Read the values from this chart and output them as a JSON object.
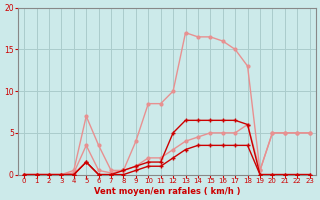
{
  "background_color": "#cceaea",
  "grid_color": "#aacccc",
  "xlabel": "Vent moyen/en rafales ( km/h )",
  "xlim": [
    -0.5,
    23.5
  ],
  "ylim": [
    0,
    20
  ],
  "yticks": [
    0,
    5,
    10,
    15,
    20
  ],
  "xticks": [
    0,
    1,
    2,
    3,
    4,
    5,
    6,
    7,
    8,
    9,
    10,
    11,
    12,
    13,
    14,
    15,
    16,
    17,
    18,
    19,
    20,
    21,
    22,
    23
  ],
  "line_pink_gust_x": [
    0,
    1,
    2,
    3,
    4,
    5,
    6,
    7,
    8,
    9,
    10,
    11,
    12,
    13,
    14,
    15,
    16,
    17,
    18,
    19,
    20,
    21,
    22,
    23
  ],
  "line_pink_gust_y": [
    0,
    0,
    0,
    0,
    0.5,
    7,
    3.5,
    0.5,
    0.5,
    4,
    8.5,
    8.5,
    10,
    17,
    16.5,
    16.5,
    16,
    15,
    13,
    0.5,
    5,
    5,
    5,
    5
  ],
  "line_pink_avg_x": [
    0,
    1,
    2,
    3,
    4,
    5,
    6,
    7,
    8,
    9,
    10,
    11,
    12,
    13,
    14,
    15,
    16,
    17,
    18,
    19,
    20,
    21,
    22,
    23
  ],
  "line_pink_avg_y": [
    0,
    0,
    0,
    0,
    0.2,
    3.5,
    0.5,
    0.2,
    0.5,
    1,
    2,
    2,
    3,
    4,
    4.5,
    5,
    5,
    5,
    6,
    0.5,
    5,
    5,
    5,
    5
  ],
  "line_dark_gust_x": [
    0,
    1,
    2,
    3,
    4,
    5,
    6,
    7,
    8,
    9,
    10,
    11,
    12,
    13,
    14,
    15,
    16,
    17,
    18,
    19,
    20,
    21,
    22,
    23
  ],
  "line_dark_gust_y": [
    0,
    0,
    0,
    0,
    0,
    1.5,
    0,
    0,
    0.5,
    1,
    1.5,
    1.5,
    5,
    6.5,
    6.5,
    6.5,
    6.5,
    6.5,
    6,
    0,
    0,
    0,
    0,
    0
  ],
  "line_dark_avg_x": [
    0,
    1,
    2,
    3,
    4,
    5,
    6,
    7,
    8,
    9,
    10,
    11,
    12,
    13,
    14,
    15,
    16,
    17,
    18,
    19,
    20,
    21,
    22,
    23
  ],
  "line_dark_avg_y": [
    0,
    0,
    0,
    0,
    0,
    1.5,
    0,
    0,
    0,
    0.5,
    1,
    1,
    2,
    3,
    3.5,
    3.5,
    3.5,
    3.5,
    3.5,
    0,
    0,
    0,
    0,
    0
  ],
  "pink_color": "#e89090",
  "dark_color": "#cc0000",
  "tick_color": "#cc0000",
  "label_color": "#cc0000",
  "axis_color": "#888888"
}
